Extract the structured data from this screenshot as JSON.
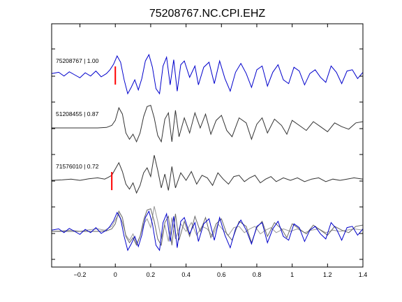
{
  "chart_data": {
    "type": "line",
    "title": "75208767.NC.CPI.EHZ",
    "xlabel": "",
    "ylabel": "",
    "xlim": [
      -0.36,
      1.4
    ],
    "xticks": [
      -0.2,
      0,
      0.2,
      0.4,
      0.6,
      0.8,
      1,
      1.2,
      1.4
    ],
    "xtick_labels": [
      "−0.2",
      "0",
      "0.2",
      "0.4",
      "0.6",
      "0.8",
      "1",
      "1.2",
      "1.4"
    ],
    "grid": false,
    "traces": [
      {
        "label": "75208767 | 1.00",
        "color": "#0000cc",
        "pick_time": 0.0,
        "pick_color": "#ff0000",
        "points": [
          [
            -0.36,
            0.05
          ],
          [
            -0.32,
            0.1
          ],
          [
            -0.29,
            -0.05
          ],
          [
            -0.26,
            0.12
          ],
          [
            -0.23,
            0.0
          ],
          [
            -0.2,
            -0.12
          ],
          [
            -0.17,
            0.08
          ],
          [
            -0.14,
            -0.05
          ],
          [
            -0.11,
            0.15
          ],
          [
            -0.08,
            -0.08
          ],
          [
            -0.05,
            0.05
          ],
          [
            -0.03,
            0.2
          ],
          [
            -0.01,
            0.42
          ],
          [
            0.01,
            0.75
          ],
          [
            0.03,
            0.5
          ],
          [
            0.05,
            -0.2
          ],
          [
            0.07,
            -0.75
          ],
          [
            0.09,
            -0.5
          ],
          [
            0.11,
            -0.2
          ],
          [
            0.13,
            -0.6
          ],
          [
            0.15,
            -0.15
          ],
          [
            0.17,
            0.55
          ],
          [
            0.19,
            0.8
          ],
          [
            0.21,
            0.3
          ],
          [
            0.23,
            -0.55
          ],
          [
            0.25,
            -0.75
          ],
          [
            0.27,
            0.35
          ],
          [
            0.29,
            0.7
          ],
          [
            0.31,
            -0.4
          ],
          [
            0.33,
            0.6
          ],
          [
            0.35,
            -0.65
          ],
          [
            0.37,
            0.4
          ],
          [
            0.39,
            0.55
          ],
          [
            0.42,
            -0.1
          ],
          [
            0.45,
            0.35
          ],
          [
            0.47,
            -0.4
          ],
          [
            0.5,
            0.3
          ],
          [
            0.53,
            0.5
          ],
          [
            0.56,
            -0.35
          ],
          [
            0.59,
            0.55
          ],
          [
            0.62,
            -0.15
          ],
          [
            0.65,
            -0.65
          ],
          [
            0.68,
            0.1
          ],
          [
            0.71,
            0.45
          ],
          [
            0.74,
            0.05
          ],
          [
            0.77,
            -0.5
          ],
          [
            0.8,
            0.2
          ],
          [
            0.83,
            0.35
          ],
          [
            0.86,
            -0.45
          ],
          [
            0.89,
            0.1
          ],
          [
            0.92,
            0.4
          ],
          [
            0.95,
            -0.2
          ],
          [
            0.98,
            -0.35
          ],
          [
            1.01,
            0.3
          ],
          [
            1.04,
            0.15
          ],
          [
            1.07,
            -0.4
          ],
          [
            1.1,
            0.05
          ],
          [
            1.13,
            0.2
          ],
          [
            1.16,
            -0.1
          ],
          [
            1.19,
            -0.3
          ],
          [
            1.22,
            0.35
          ],
          [
            1.25,
            0.1
          ],
          [
            1.28,
            -0.35
          ],
          [
            1.31,
            0.15
          ],
          [
            1.34,
            0.2
          ],
          [
            1.37,
            -0.15
          ],
          [
            1.4,
            0.1
          ]
        ]
      },
      {
        "label": "51208455 | 0.87",
        "color": "#333333",
        "pick_time": null,
        "pick_color": "#ff0000",
        "points": [
          [
            -0.36,
            0.0
          ],
          [
            -0.2,
            0.0
          ],
          [
            -0.1,
            0.0
          ],
          [
            -0.05,
            0.02
          ],
          [
            -0.02,
            0.1
          ],
          [
            0.0,
            0.3
          ],
          [
            0.02,
            0.8
          ],
          [
            0.04,
            0.55
          ],
          [
            0.06,
            -0.2
          ],
          [
            0.08,
            -0.45
          ],
          [
            0.1,
            -0.25
          ],
          [
            0.12,
            -0.55
          ],
          [
            0.14,
            -0.2
          ],
          [
            0.16,
            0.45
          ],
          [
            0.18,
            0.85
          ],
          [
            0.2,
            0.9
          ],
          [
            0.22,
            0.4
          ],
          [
            0.24,
            -0.3
          ],
          [
            0.26,
            -0.55
          ],
          [
            0.28,
            0.35
          ],
          [
            0.3,
            0.6
          ],
          [
            0.32,
            -0.55
          ],
          [
            0.34,
            0.7
          ],
          [
            0.36,
            -0.35
          ],
          [
            0.39,
            0.4
          ],
          [
            0.42,
            -0.2
          ],
          [
            0.45,
            0.6
          ],
          [
            0.48,
            0.0
          ],
          [
            0.51,
            0.55
          ],
          [
            0.54,
            -0.25
          ],
          [
            0.57,
            0.3
          ],
          [
            0.6,
            0.5
          ],
          [
            0.63,
            -0.1
          ],
          [
            0.66,
            -0.35
          ],
          [
            0.7,
            0.4
          ],
          [
            0.74,
            0.2
          ],
          [
            0.77,
            -0.45
          ],
          [
            0.8,
            0.15
          ],
          [
            0.83,
            0.4
          ],
          [
            0.86,
            -0.2
          ],
          [
            0.9,
            0.35
          ],
          [
            0.94,
            0.1
          ],
          [
            0.97,
            -0.25
          ],
          [
            1.0,
            0.3
          ],
          [
            1.04,
            0.1
          ],
          [
            1.08,
            -0.1
          ],
          [
            1.12,
            0.25
          ],
          [
            1.16,
            0.05
          ],
          [
            1.2,
            -0.15
          ],
          [
            1.24,
            0.2
          ],
          [
            1.28,
            0.05
          ],
          [
            1.32,
            -0.05
          ],
          [
            1.36,
            0.2
          ],
          [
            1.4,
            0.25
          ]
        ]
      },
      {
        "label": "71576010 | 0.72",
        "color": "#333333",
        "pick_time": -0.02,
        "pick_color": "#ff0000",
        "points": [
          [
            -0.36,
            0.0
          ],
          [
            -0.3,
            0.02
          ],
          [
            -0.25,
            0.05
          ],
          [
            -0.2,
            0.0
          ],
          [
            -0.15,
            0.06
          ],
          [
            -0.1,
            0.1
          ],
          [
            -0.06,
            0.05
          ],
          [
            -0.04,
            0.12
          ],
          [
            -0.02,
            0.2
          ],
          [
            0.0,
            0.45
          ],
          [
            0.02,
            0.7
          ],
          [
            0.04,
            0.35
          ],
          [
            0.06,
            -0.15
          ],
          [
            0.08,
            -0.35
          ],
          [
            0.1,
            -0.1
          ],
          [
            0.12,
            -0.5
          ],
          [
            0.14,
            -0.2
          ],
          [
            0.16,
            0.3
          ],
          [
            0.18,
            0.5
          ],
          [
            0.2,
            0.15
          ],
          [
            0.22,
            1.0
          ],
          [
            0.24,
            0.4
          ],
          [
            0.26,
            -0.3
          ],
          [
            0.28,
            0.25
          ],
          [
            0.3,
            -0.4
          ],
          [
            0.32,
            0.55
          ],
          [
            0.34,
            -0.3
          ],
          [
            0.37,
            0.3
          ],
          [
            0.4,
            0.0
          ],
          [
            0.43,
            0.35
          ],
          [
            0.46,
            -0.15
          ],
          [
            0.49,
            0.2
          ],
          [
            0.52,
            0.1
          ],
          [
            0.55,
            -0.2
          ],
          [
            0.58,
            0.3
          ],
          [
            0.61,
            0.05
          ],
          [
            0.64,
            -0.15
          ],
          [
            0.67,
            0.15
          ],
          [
            0.7,
            0.2
          ],
          [
            0.73,
            -0.05
          ],
          [
            0.76,
            0.1
          ],
          [
            0.79,
            0.2
          ],
          [
            0.82,
            -0.1
          ],
          [
            0.85,
            0.05
          ],
          [
            0.88,
            0.15
          ],
          [
            0.91,
            -0.05
          ],
          [
            0.95,
            0.1
          ],
          [
            0.99,
            0.0
          ],
          [
            1.03,
            0.1
          ],
          [
            1.07,
            -0.05
          ],
          [
            1.11,
            0.05
          ],
          [
            1.15,
            0.1
          ],
          [
            1.19,
            -0.05
          ],
          [
            1.23,
            0.05
          ],
          [
            1.27,
            0.0
          ],
          [
            1.31,
            0.05
          ],
          [
            1.35,
            0.1
          ],
          [
            1.4,
            0.05
          ]
        ]
      }
    ]
  }
}
